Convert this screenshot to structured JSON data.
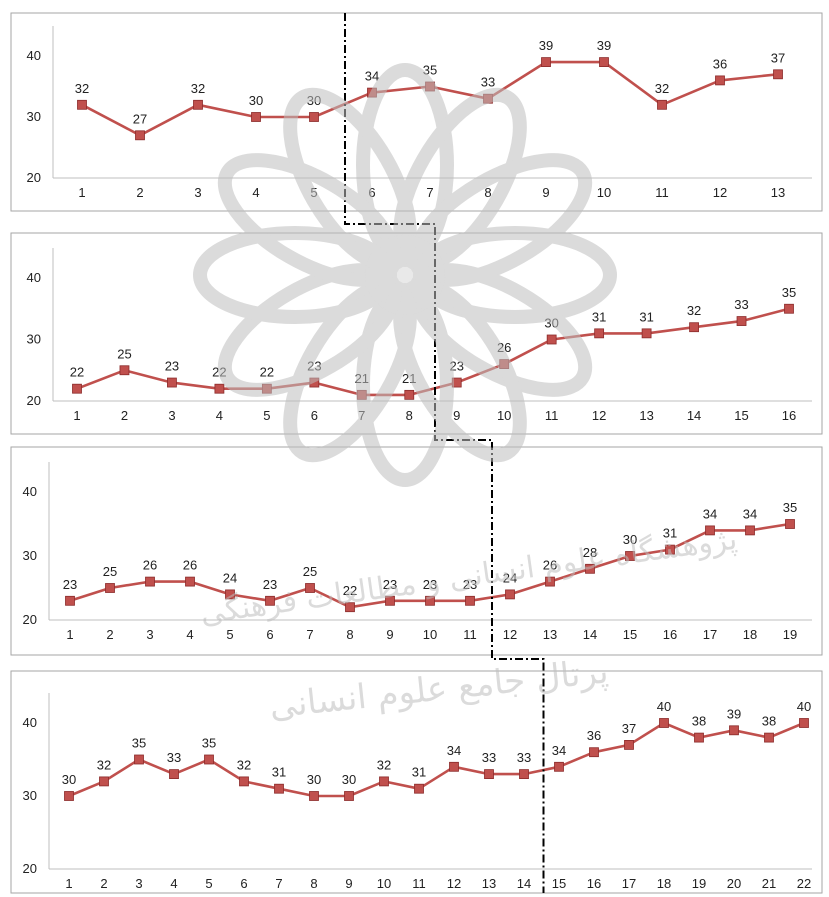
{
  "colors": {
    "line": "#c0504d",
    "marker": "#c0504d",
    "marker_edge": "#8b2b2b",
    "frame": "#a6a6a6",
    "divider": "#000000",
    "watermark": "#bdbdbd"
  },
  "watermark": {
    "icon": "rosette-logo-icon",
    "text_line1": "پژوهشگاه علوم انسانی و مطالعات فرهنگی",
    "text_line2": "پرتال جامع علوم انسانی"
  },
  "chart_data": [
    {
      "type": "line",
      "x": [
        1,
        2,
        3,
        4,
        5,
        6,
        7,
        8,
        9,
        10,
        11,
        12,
        13
      ],
      "values": [
        32,
        27,
        32,
        30,
        30,
        34,
        35,
        33,
        39,
        39,
        32,
        36,
        37
      ],
      "ylim": [
        20,
        40
      ],
      "yticks": [
        20,
        30,
        40
      ],
      "phase_change_after": 5,
      "grid": false,
      "legend": "none"
    },
    {
      "type": "line",
      "x": [
        1,
        2,
        3,
        4,
        5,
        6,
        7,
        8,
        9,
        10,
        11,
        12,
        13,
        14,
        15,
        16
      ],
      "values": [
        22,
        25,
        23,
        22,
        22,
        23,
        21,
        21,
        23,
        26,
        30,
        31,
        31,
        32,
        33,
        35
      ],
      "ylim": [
        20,
        40
      ],
      "yticks": [
        20,
        30,
        40
      ],
      "phase_change_after": 8,
      "grid": false,
      "legend": "none"
    },
    {
      "type": "line",
      "x": [
        1,
        2,
        3,
        4,
        5,
        6,
        7,
        8,
        9,
        10,
        11,
        12,
        13,
        14,
        15,
        16,
        17,
        18,
        19
      ],
      "values": [
        23,
        25,
        26,
        26,
        24,
        23,
        25,
        22,
        23,
        23,
        23,
        24,
        26,
        28,
        30,
        31,
        34,
        34,
        35
      ],
      "ylim": [
        20,
        40
      ],
      "yticks": [
        20,
        30,
        40
      ],
      "phase_change_after": 11,
      "grid": false,
      "legend": "none"
    },
    {
      "type": "line",
      "x": [
        1,
        2,
        3,
        4,
        5,
        6,
        7,
        8,
        9,
        10,
        11,
        12,
        13,
        14,
        15,
        16,
        17,
        18,
        19,
        20,
        21,
        22
      ],
      "values": [
        30,
        32,
        35,
        33,
        35,
        32,
        31,
        30,
        30,
        32,
        31,
        34,
        33,
        33,
        34,
        36,
        37,
        40,
        38,
        39,
        38,
        40
      ],
      "ylim": [
        20,
        40
      ],
      "yticks": [
        20,
        30,
        40
      ],
      "phase_change_after": 14,
      "grid": false,
      "legend": "none"
    }
  ]
}
